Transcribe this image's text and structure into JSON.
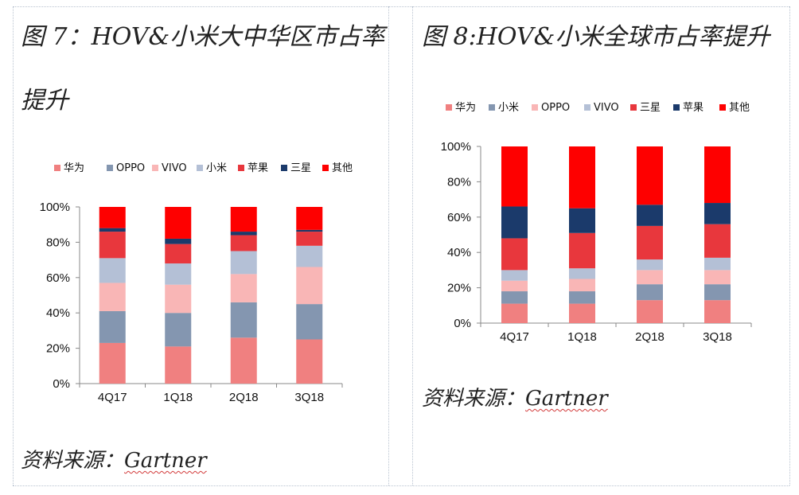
{
  "charts": [
    {
      "title_line1": "图 7：HOV&小米大中华区市占率",
      "title_line2": "提升",
      "source_label": "资料来源：",
      "source_name": "Gartner"
    },
    {
      "title_line1": "图 8:HOV&小米全球市占率提升",
      "source_label": "资料来源：",
      "source_name": "Gartner"
    }
  ],
  "chart_data": [
    {
      "type": "bar",
      "stacked": true,
      "title": "图 7：HOV&小米大中华区市占率提升",
      "categories": [
        "4Q17",
        "1Q18",
        "2Q18",
        "3Q18"
      ],
      "yticks": [
        "0%",
        "20%",
        "40%",
        "60%",
        "80%",
        "100%"
      ],
      "ylim": [
        0,
        100
      ],
      "legend_position": "top",
      "series": [
        {
          "name": "华为",
          "color": "#f08080",
          "values": [
            23,
            21,
            26,
            25
          ]
        },
        {
          "name": "OPPO",
          "color": "#8496b0",
          "values": [
            18,
            19,
            20,
            20
          ]
        },
        {
          "name": "VIVO",
          "color": "#f9b6b6",
          "values": [
            16,
            16,
            16,
            21
          ]
        },
        {
          "name": "小米",
          "color": "#b4c0d6",
          "values": [
            14,
            12,
            13,
            12
          ]
        },
        {
          "name": "苹果",
          "color": "#e8373d",
          "values": [
            15,
            11,
            9,
            8
          ]
        },
        {
          "name": "三星",
          "color": "#1b3a6b",
          "values": [
            2,
            3,
            2,
            1
          ]
        },
        {
          "name": "其他",
          "color": "#fe0000",
          "values": [
            12,
            18,
            14,
            13
          ]
        }
      ]
    },
    {
      "type": "bar",
      "stacked": true,
      "title": "图 8:HOV&小米全球市占率提升",
      "categories": [
        "4Q17",
        "1Q18",
        "2Q18",
        "3Q18"
      ],
      "yticks": [
        "0%",
        "20%",
        "40%",
        "60%",
        "80%",
        "100%"
      ],
      "ylim": [
        0,
        100
      ],
      "legend_position": "top",
      "series": [
        {
          "name": "华为",
          "color": "#f08080",
          "values": [
            11,
            11,
            13,
            13
          ]
        },
        {
          "name": "小米",
          "color": "#8496b0",
          "values": [
            7,
            7,
            9,
            9
          ]
        },
        {
          "name": "OPPO",
          "color": "#f9b6b6",
          "values": [
            6,
            7,
            8,
            8
          ]
        },
        {
          "name": "VIVO",
          "color": "#b4c0d6",
          "values": [
            6,
            6,
            6,
            7
          ]
        },
        {
          "name": "三星",
          "color": "#e8373d",
          "values": [
            18,
            20,
            19,
            19
          ]
        },
        {
          "name": "苹果",
          "color": "#1b3a6b",
          "values": [
            18,
            14,
            12,
            12
          ]
        },
        {
          "name": "其他",
          "color": "#fe0000",
          "values": [
            34,
            35,
            33,
            32
          ]
        }
      ]
    }
  ]
}
